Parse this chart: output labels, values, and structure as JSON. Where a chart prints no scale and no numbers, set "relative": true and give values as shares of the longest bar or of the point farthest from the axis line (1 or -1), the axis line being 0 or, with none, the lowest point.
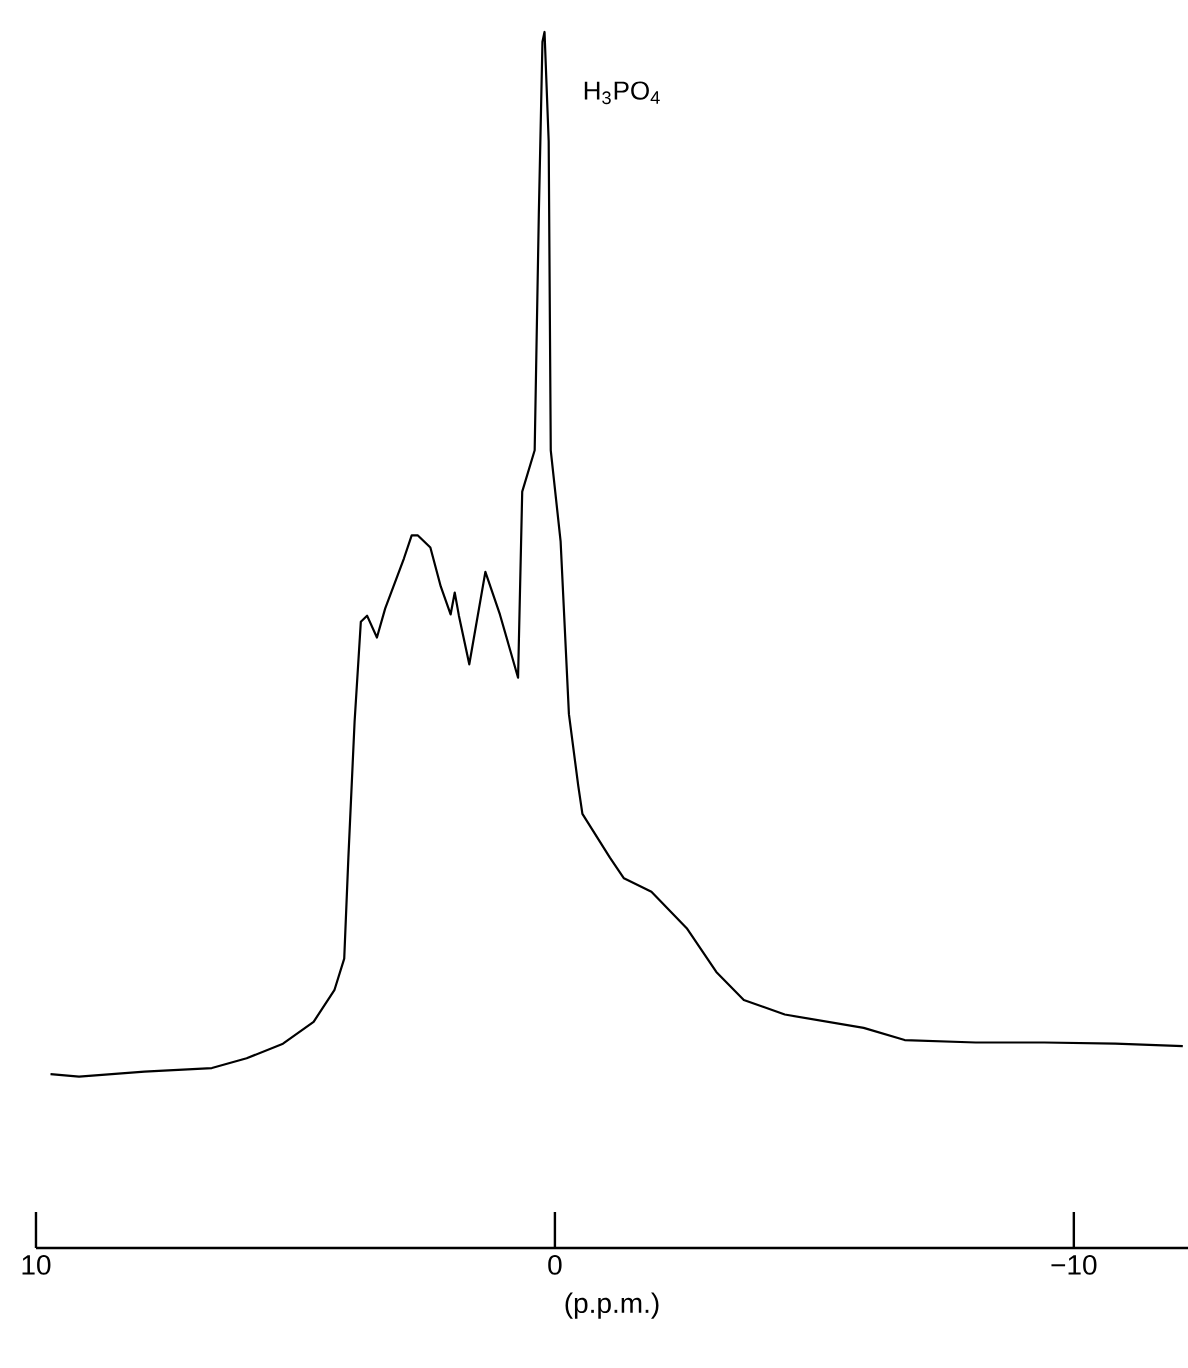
{
  "chart_data": {
    "type": "line",
    "relative": true,
    "xlabel": "(p.p.m.)",
    "xlim": [
      10,
      -12.2
    ],
    "xticks": [
      10,
      0,
      {
        "value": -10,
        "label": "−10"
      }
    ],
    "annotations": [
      "H$_{3}$PO$_{4}$"
    ],
    "x": [
      9.72,
      9.17,
      7.91,
      6.61,
      5.94,
      5.24,
      4.65,
      4.25,
      4.06,
      3.98,
      3.86,
      3.74,
      3.62,
      3.43,
      3.27,
      2.91,
      2.76,
      2.64,
      2.4,
      2.2,
      2.01,
      1.93,
      1.85,
      1.65,
      1.34,
      1.06,
      0.71,
      0.63,
      0.39,
      0.31,
      0.24,
      0.2,
      0.12,
      0.08,
      -0.11,
      -0.27,
      -0.45,
      -0.53,
      -1.06,
      -1.33,
      -1.86,
      -2.54,
      -3.11,
      -3.64,
      -4.43,
      -5.95,
      -6.74,
      -8.11,
      -9.43,
      -10.8,
      -12.1
    ],
    "series": [
      {
        "color": "#000000",
        "values": [
          0.143,
          0.141,
          0.145,
          0.148,
          0.156,
          0.168,
          0.186,
          0.212,
          0.238,
          0.321,
          0.433,
          0.515,
          0.52,
          0.502,
          0.526,
          0.567,
          0.586,
          0.586,
          0.576,
          0.544,
          0.521,
          0.539,
          0.52,
          0.48,
          0.556,
          0.521,
          0.469,
          0.622,
          0.656,
          0.85,
          0.992,
          1,
          0.91,
          0.656,
          0.581,
          0.439,
          0.38,
          0.357,
          0.321,
          0.304,
          0.293,
          0.263,
          0.227,
          0.204,
          0.192,
          0.181,
          0.171,
          0.169,
          0.169,
          0.168,
          0.166
        ]
      }
    ]
  }
}
